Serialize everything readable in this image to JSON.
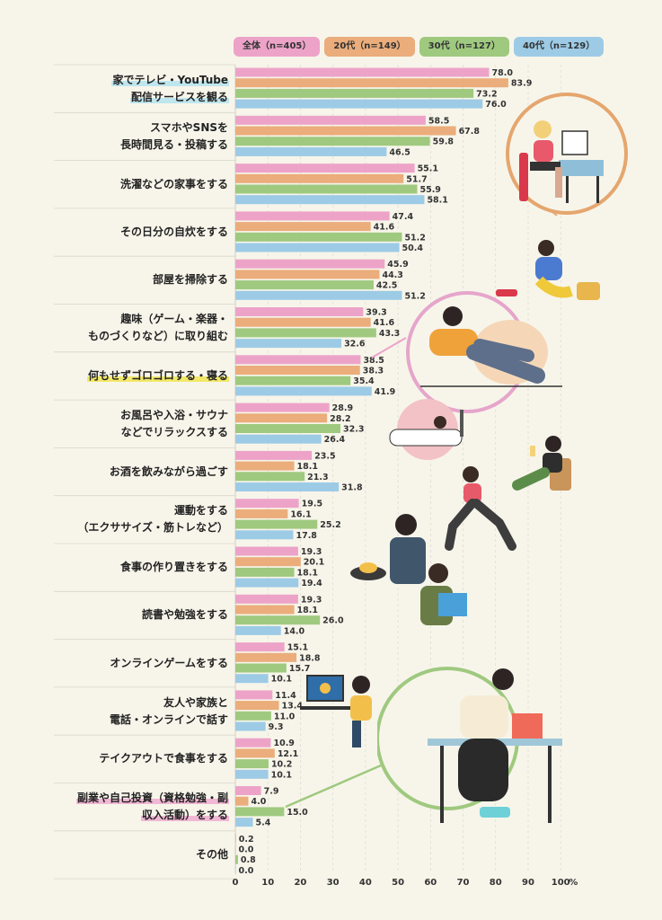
{
  "colors": {
    "all": "#eda3c8",
    "s20": "#eaad7b",
    "s30": "#9fc97f",
    "s40": "#9dcbe6",
    "grid": "#d8d6cc",
    "highlight_blue": "#bfe6ee",
    "highlight_yellow": "#f2e86a",
    "highlight_pink": "#f1b7d4"
  },
  "chart_data": {
    "type": "bar",
    "orientation": "horizontal",
    "unit": "%",
    "xlim": [
      0,
      100
    ],
    "ticks": [
      "0",
      "10",
      "20",
      "30",
      "40",
      "50",
      "60",
      "70",
      "80",
      "90",
      "100"
    ],
    "categories": [
      "家でテレビ・YouTube\n配信サービスを観る",
      "スマホやSNSを\n長時間見る・投稿する",
      "洗濯などの家事をする",
      "その日分の自炊をする",
      "部屋を掃除する",
      "趣味（ゲーム・楽器・\nものづくりなど）に取り組む",
      "何もせずゴロゴロする・寝る",
      "お風呂や入浴・サウナ\nなどでリラックスする",
      "お酒を飲みながら過ごす",
      "運動をする\n（エクササイズ・筋トレなど）",
      "食事の作り置きをする",
      "読書や勉強をする",
      "オンラインゲームをする",
      "友人や家族と\n電話・オンラインで話す",
      "テイクアウトで食事をする",
      "副業や自己投資（資格勉強・副\n収入活動）をする",
      "その他"
    ],
    "series": [
      {
        "name": "全体（n=405）",
        "values": [
          78.0,
          58.5,
          55.1,
          47.4,
          45.9,
          39.3,
          38.5,
          28.9,
          23.5,
          19.5,
          19.3,
          19.3,
          15.1,
          11.4,
          10.9,
          7.9,
          0.2
        ]
      },
      {
        "name": "20代（n=149）",
        "values": [
          83.9,
          67.8,
          51.7,
          41.6,
          44.3,
          41.6,
          38.3,
          28.2,
          18.1,
          16.1,
          20.1,
          18.1,
          18.8,
          13.4,
          12.1,
          4.0,
          0.0
        ]
      },
      {
        "name": "30代（n=127）",
        "values": [
          73.2,
          59.8,
          55.9,
          51.2,
          42.5,
          43.3,
          35.4,
          32.3,
          21.3,
          25.2,
          18.1,
          26.0,
          15.7,
          11.0,
          10.2,
          15.0,
          0.8
        ]
      },
      {
        "name": "40代（n=129）",
        "values": [
          76.0,
          46.5,
          58.1,
          50.4,
          51.2,
          32.6,
          41.9,
          26.4,
          31.8,
          17.8,
          19.4,
          14.0,
          10.1,
          9.3,
          10.1,
          5.4,
          0.0
        ]
      }
    ],
    "highlights": [
      {
        "index": 0,
        "color": "highlight_blue"
      },
      {
        "index": 6,
        "color": "highlight_yellow"
      },
      {
        "index": 15,
        "color": "highlight_pink"
      }
    ]
  }
}
